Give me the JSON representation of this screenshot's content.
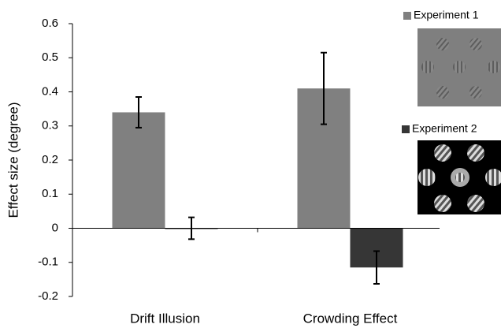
{
  "chart_data": {
    "type": "bar",
    "y_label": "Effect size (degree)",
    "categories": [
      "Drift Illusion",
      "Crowding Effect"
    ],
    "series": [
      {
        "name": "Experiment 1",
        "color": "#808080",
        "values": [
          0.34,
          0.41
        ],
        "errors": [
          0.045,
          0.105
        ]
      },
      {
        "name": "Experiment 2",
        "color": "#363636",
        "values": [
          0,
          -0.115
        ],
        "errors": [
          0.032,
          0.048
        ]
      }
    ],
    "ylim": [
      -0.2,
      0.6
    ],
    "yticks": [
      -0.2,
      -0.1,
      0,
      0.1,
      0.2,
      0.3,
      0.4,
      0.5,
      0.6
    ],
    "grid": false
  }
}
